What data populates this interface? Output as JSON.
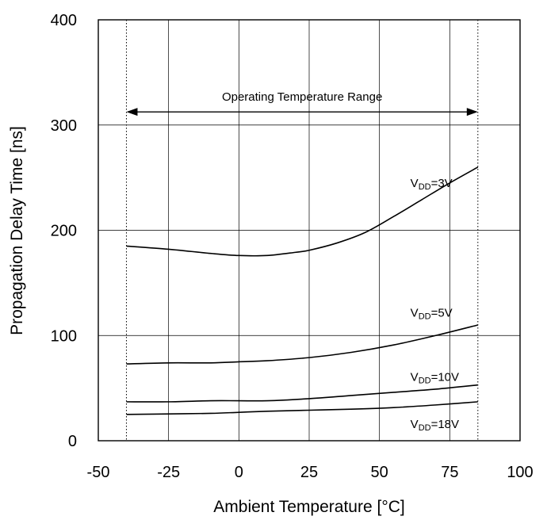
{
  "chart_data": {
    "type": "line",
    "title": "",
    "xlabel": "Ambient Temperature [°C]",
    "ylabel": "Propagation Delay Time [ns]",
    "xlim": [
      -50,
      100
    ],
    "ylim": [
      0,
      400
    ],
    "xticks": [
      -50,
      -25,
      0,
      25,
      50,
      75,
      100
    ],
    "yticks": [
      0,
      100,
      200,
      300,
      400
    ],
    "grid": true,
    "legend": "none",
    "annotation": {
      "text": "Operating Temperature Range",
      "x_start": -40,
      "x_end": 85
    },
    "operating_range_lines": [
      -40,
      85
    ],
    "series": [
      {
        "name": "VDD=3V",
        "label_main": "V",
        "label_sub": "DD",
        "label_tail": "=3V",
        "x": [
          -40,
          -25,
          -10,
          0,
          10,
          20,
          25,
          35,
          45,
          55,
          65,
          75,
          85
        ],
        "y": [
          185,
          182,
          178,
          176,
          176,
          179,
          181,
          188,
          198,
          213,
          229,
          245,
          260
        ]
      },
      {
        "name": "VDD=5V",
        "label_main": "V",
        "label_sub": "DD",
        "label_tail": "=5V",
        "x": [
          -40,
          -25,
          -10,
          0,
          10,
          25,
          40,
          55,
          70,
          85
        ],
        "y": [
          73,
          74,
          74,
          75,
          76,
          79,
          84,
          91,
          100,
          110
        ]
      },
      {
        "name": "VDD=10V",
        "label_main": "V",
        "label_sub": "DD",
        "label_tail": "=10V",
        "x": [
          -40,
          -25,
          -10,
          0,
          10,
          25,
          40,
          55,
          70,
          85
        ],
        "y": [
          37,
          37,
          38,
          38,
          38,
          40,
          43,
          46,
          49,
          53
        ]
      },
      {
        "name": "VDD=18V",
        "label_main": "V",
        "label_sub": "DD",
        "label_tail": "=18V",
        "x": [
          -40,
          -25,
          -10,
          0,
          10,
          25,
          40,
          55,
          70,
          85
        ],
        "y": [
          25,
          25.5,
          26,
          27,
          28,
          29,
          30,
          31.5,
          34,
          37
        ]
      }
    ]
  }
}
